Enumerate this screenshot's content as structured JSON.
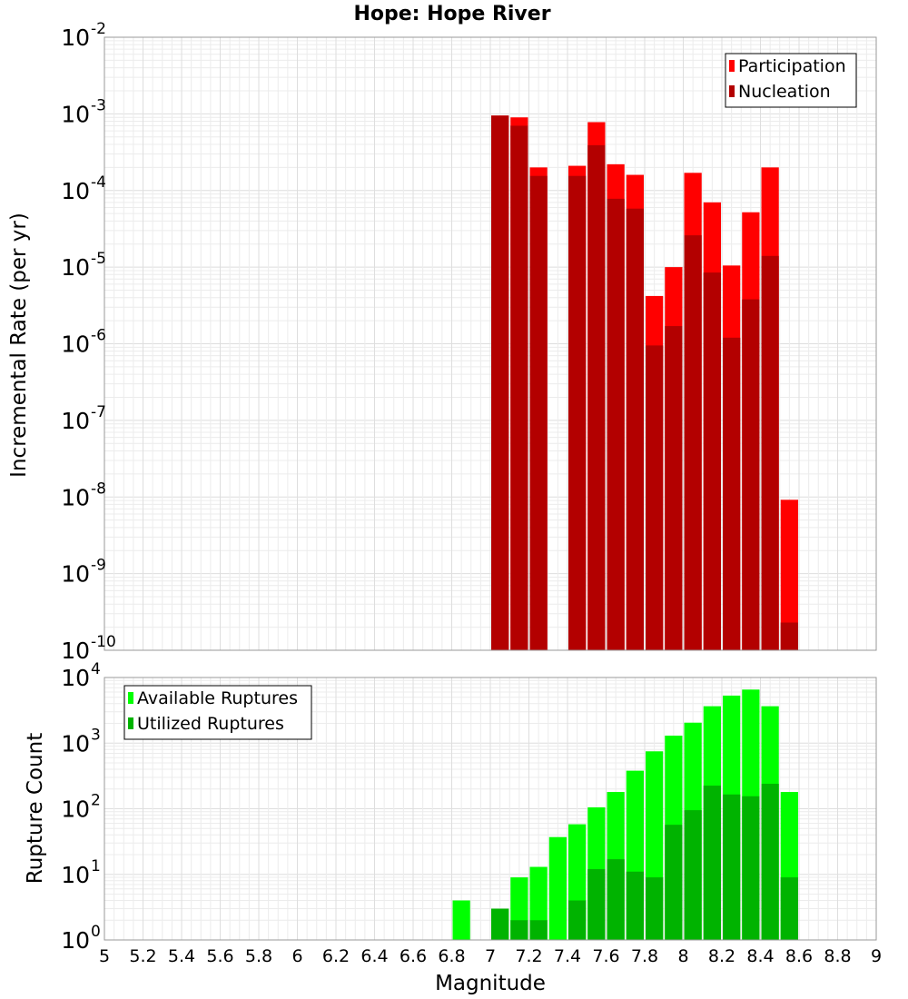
{
  "chart_data": [
    {
      "type": "bar",
      "title": "Hope: Hope River",
      "xlabel": "",
      "ylabel": "Incremental Rate (per yr)",
      "y_scale": "log",
      "ylim_exp": [
        -10,
        -2
      ],
      "xlim": [
        5,
        9
      ],
      "bar_width": 0.1,
      "legend_position": "top-right",
      "grid": true,
      "x": [
        7.05,
        7.15,
        7.25,
        7.45,
        7.55,
        7.65,
        7.75,
        7.85,
        7.95,
        8.05,
        8.15,
        8.25,
        8.35,
        8.45,
        8.55
      ],
      "series": [
        {
          "name": "Participation",
          "color": "#ff0000",
          "values": [
            0.00095,
            0.0009,
            0.0002,
            0.00021,
            0.00078,
            0.00022,
            0.00016,
            4.2e-06,
            1e-05,
            0.00017,
            7e-05,
            1.05e-05,
            5.2e-05,
            0.0002,
            9.2e-09
          ]
        },
        {
          "name": "Nucleation",
          "color": "#b30000",
          "values": [
            0.00095,
            0.0007,
            0.000155,
            0.000155,
            0.00039,
            7.8e-05,
            5.8e-05,
            9.5e-07,
            1.7e-06,
            2.6e-05,
            8.5e-06,
            1.2e-06,
            3.8e-06,
            1.4e-05,
            2.3e-10
          ]
        }
      ]
    },
    {
      "type": "bar",
      "title": "",
      "xlabel": "Magnitude",
      "ylabel": "Rupture Count",
      "y_scale": "log",
      "ylim_exp": [
        0,
        4
      ],
      "xlim": [
        5,
        9
      ],
      "bar_width": 0.1,
      "legend_position": "top-left",
      "grid": true,
      "x_ticks": [
        "5",
        "5.2",
        "5.4",
        "5.6",
        "5.8",
        "6",
        "6.2",
        "6.4",
        "6.6",
        "6.8",
        "7",
        "7.2",
        "7.4",
        "7.6",
        "7.8",
        "8",
        "8.2",
        "8.4",
        "8.6",
        "8.8",
        "9"
      ],
      "x": [
        6.85,
        6.95,
        7.05,
        7.15,
        7.25,
        7.35,
        7.45,
        7.55,
        7.65,
        7.75,
        7.85,
        7.95,
        8.05,
        8.15,
        8.25,
        8.35,
        8.45,
        8.55
      ],
      "series": [
        {
          "name": "Available Ruptures",
          "color": "#00ff00",
          "values": [
            4,
            1,
            3,
            9,
            13,
            37,
            58,
            105,
            180,
            380,
            750,
            1300,
            2050,
            3650,
            5300,
            6550,
            3650,
            180
          ]
        },
        {
          "name": "Utilized Ruptures",
          "color": "#00b300",
          "values": [
            0,
            0,
            3,
            2,
            2,
            1,
            4,
            12,
            17,
            11,
            9,
            57,
            95,
            225,
            165,
            155,
            240,
            9
          ]
        }
      ]
    }
  ]
}
